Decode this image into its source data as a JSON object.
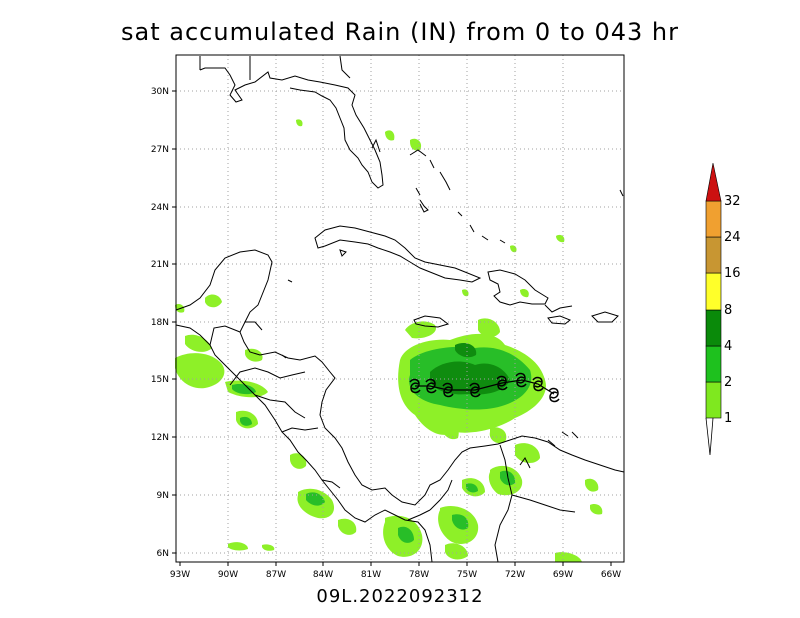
{
  "title": "sat accumulated Rain (IN) from 0 to 043 hr",
  "footer": "09L.2022092312",
  "lat_labels": [
    "6N",
    "9N",
    "12N",
    "15N",
    "18N",
    "21N",
    "24N",
    "27N",
    "30N"
  ],
  "lon_labels": [
    "93W",
    "90W",
    "87W",
    "84W",
    "81W",
    "78W",
    "75W",
    "72W",
    "69W",
    "66W"
  ],
  "colorbar": {
    "levels": [
      "1",
      "2",
      "4",
      "8",
      "16",
      "24",
      "32"
    ],
    "colors": [
      "#7fe81f",
      "#1ec11e",
      "#0a8a0a",
      "#ffff2a",
      "#c89632",
      "#f0a030",
      "#cc1010"
    ]
  },
  "storm_symbol": "tropical-cyclone-symbol",
  "colors": {
    "light_green": "#8ef028",
    "medium_green": "#28be28",
    "dark_green": "#0f8c0f",
    "coastline": "#000000",
    "grid": "#a0a0a0"
  }
}
